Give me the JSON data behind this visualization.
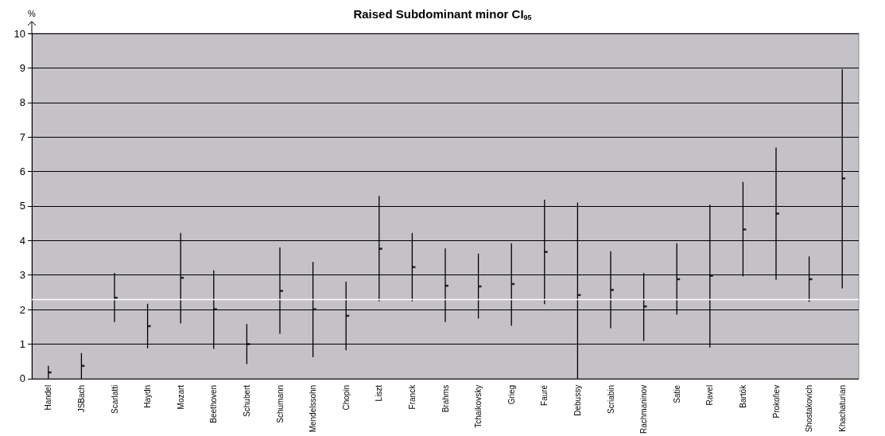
{
  "chart_data": {
    "type": "scatter",
    "title": "Raised Subdominant minor CI$_{95}$",
    "ylabel": "%",
    "categories": [
      "Handel",
      "JSBach",
      "Scarlatti",
      "Haydn",
      "Mozart",
      "Beethoven",
      "Schubert",
      "Schumann",
      "Mendelssohn",
      "Chopin",
      "Liszt",
      "Franck",
      "Brahms",
      "Tchaikovsky",
      "Grieg",
      "Fauré",
      "Debussy",
      "Scriabin",
      "Rachmaninov",
      "Satie",
      "Ravel",
      "Bartók",
      "Prokofiev",
      "Shostakovich",
      "Khachaturian"
    ],
    "values": [
      0.18,
      0.37,
      2.34,
      1.52,
      2.92,
      2.01,
      1.0,
      2.54,
      2.01,
      1.82,
      3.76,
      3.23,
      2.69,
      2.67,
      2.74,
      3.67,
      2.42,
      2.57,
      2.09,
      2.88,
      2.98,
      4.32,
      4.78,
      2.88,
      5.8
    ],
    "errors": [
      [
        0,
        0.37
      ],
      [
        0,
        0.74
      ],
      [
        1.64,
        3.06
      ],
      [
        0.88,
        2.17
      ],
      [
        1.6,
        4.22
      ],
      [
        0.86,
        3.14
      ],
      [
        0.42,
        1.58
      ],
      [
        1.3,
        3.8
      ],
      [
        0.62,
        3.38
      ],
      [
        0.82,
        2.81
      ],
      [
        2.24,
        5.29
      ],
      [
        2.24,
        4.22
      ],
      [
        1.64,
        3.77
      ],
      [
        1.74,
        3.62
      ],
      [
        1.53,
        3.92
      ],
      [
        2.16,
        5.18
      ],
      [
        0,
        5.1
      ],
      [
        1.46,
        3.69
      ],
      [
        1.09,
        3.06
      ],
      [
        1.85,
        3.92
      ],
      [
        0.9,
        5.04
      ],
      [
        2.96,
        5.7
      ],
      [
        2.86,
        6.69
      ],
      [
        2.22,
        3.54
      ],
      [
        2.61,
        8.96
      ]
    ],
    "color": "#000000",
    "marker": "square",
    "ylim": [
      0,
      10
    ],
    "yticks": [
      0,
      1,
      2,
      3,
      4,
      5,
      6,
      7,
      8,
      9,
      10
    ],
    "grid": "y",
    "ref_lines": [
      {
        "axis": "y",
        "value": 2.29,
        "color": "#ffffff",
        "line_style": "solid"
      }
    ]
  }
}
